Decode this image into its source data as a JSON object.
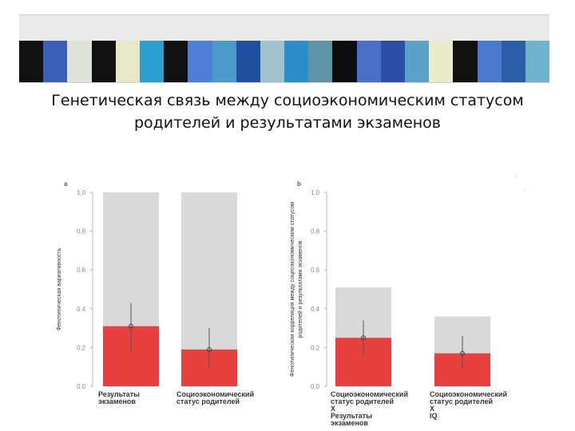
{
  "banner": {
    "colors": [
      "#111111",
      "#3a5fb8",
      "#dde3d6",
      "#111111",
      "#e6e8c6",
      "#2a9fd0",
      "#111111",
      "#4d7fd8",
      "#4a9bc8",
      "#1f4f9e",
      "#9fc2cc",
      "#2a8fc8",
      "#5e93a8",
      "#0d0d0d",
      "#4a6fc8",
      "#2d4ea8",
      "#5aa3c8",
      "#e8ecc8",
      "#111111",
      "#4a7ad0",
      "#2a5fa8",
      "#6fb3cc"
    ]
  },
  "slide": {
    "title_line1": "Генетическая связь между социоэкономическим статусом",
    "title_line2": "родителей и результатами экзаменов"
  },
  "chart_data": [
    {
      "type": "bar",
      "panel": "a",
      "ylabel": "Фенотипическая вариативность",
      "ylim": [
        0,
        1
      ],
      "yticks": [
        "0.0",
        "0.2",
        "0.4",
        "0.6",
        "0.8",
        "1.0"
      ],
      "categories": [
        [
          "Результаты",
          "экзаменов"
        ],
        [
          "Социоэкономический",
          "статус родителей"
        ]
      ],
      "total": [
        1.0,
        1.0
      ],
      "values": [
        0.31,
        0.19
      ],
      "error_low": [
        0.18,
        0.09
      ],
      "error_high": [
        0.43,
        0.3
      ],
      "colors": {
        "value": "#e8403f",
        "total": "#d9d9d9"
      }
    },
    {
      "type": "bar",
      "panel": "b",
      "ylabel": [
        "Фенотипическая корреляция между социоэкономическим статусом",
        "родителей и результатами экзаменов"
      ],
      "ylim": [
        0,
        1
      ],
      "yticks": [
        "0.0",
        "0.2",
        "0.4",
        "0.6",
        "0.8",
        "1.0"
      ],
      "categories": [
        [
          "Социоэкономический",
          "статус родителей",
          "X",
          "Результаты",
          "экзаменов"
        ],
        [
          "Социоэкономический",
          "статус родителей",
          "X",
          "IQ"
        ]
      ],
      "total": [
        0.51,
        0.36
      ],
      "values": [
        0.25,
        0.17
      ],
      "error_low": [
        0.16,
        0.09
      ],
      "error_high": [
        0.34,
        0.26
      ],
      "colors": {
        "value": "#e8403f",
        "total": "#d9d9d9"
      }
    }
  ]
}
